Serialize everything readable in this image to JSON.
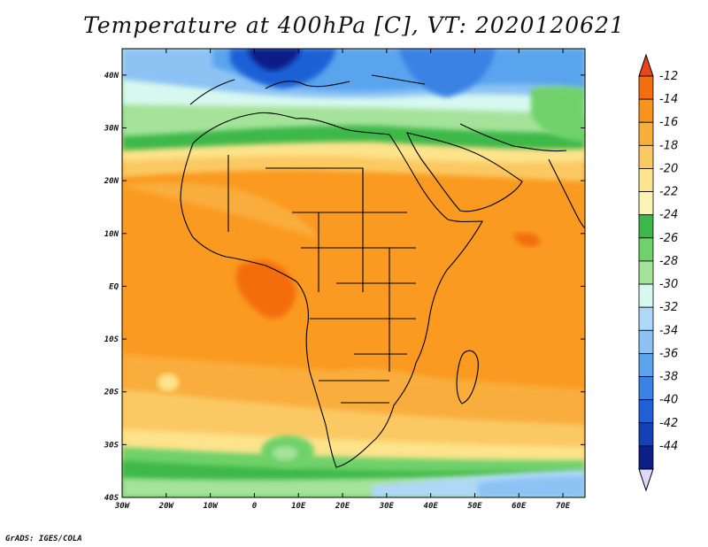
{
  "title": "Temperature at 400hPa [C], VT: 2020120621",
  "footer": "GrADS: IGES/COLA",
  "map": {
    "lon_range": [
      -30,
      75
    ],
    "lat_range": [
      -40,
      45
    ],
    "x_ticks": [
      {
        "value": -30,
        "label": "30W"
      },
      {
        "value": -20,
        "label": "20W"
      },
      {
        "value": -10,
        "label": "10W"
      },
      {
        "value": 0,
        "label": "0"
      },
      {
        "value": 10,
        "label": "10E"
      },
      {
        "value": 20,
        "label": "20E"
      },
      {
        "value": 30,
        "label": "30E"
      },
      {
        "value": 40,
        "label": "40E"
      },
      {
        "value": 50,
        "label": "50E"
      },
      {
        "value": 60,
        "label": "60E"
      },
      {
        "value": 70,
        "label": "70E"
      }
    ],
    "y_ticks": [
      {
        "value": 40,
        "label": "40N"
      },
      {
        "value": 30,
        "label": "30N"
      },
      {
        "value": 20,
        "label": "20N"
      },
      {
        "value": 10,
        "label": "10N"
      },
      {
        "value": 0,
        "label": "EQ"
      },
      {
        "value": -10,
        "label": "10S"
      },
      {
        "value": -20,
        "label": "20S"
      },
      {
        "value": -30,
        "label": "30S"
      },
      {
        "value": -40,
        "label": "40S"
      }
    ]
  },
  "colorbar": {
    "top_arrow_color": "#e8451a",
    "bottom_arrow_color": "#dcd8ff",
    "levels": [
      "-12",
      "-14",
      "-16",
      "-18",
      "-20",
      "-22",
      "-24",
      "-26",
      "-28",
      "-30",
      "-32",
      "-34",
      "-36",
      "-38",
      "-40",
      "-42",
      "-44"
    ],
    "bins": [
      "#f46d0e",
      "#f7941d",
      "#f9ad3c",
      "#fbc963",
      "#fde38b",
      "#fbf4b4",
      "#3cb84a",
      "#6fd16a",
      "#a5e39a",
      "#d7f8f0",
      "#afd8f6",
      "#8cc3f4",
      "#5aa4ee",
      "#3a82e4",
      "#1f60d6",
      "#1540b8",
      "#0b1f86"
    ]
  }
}
